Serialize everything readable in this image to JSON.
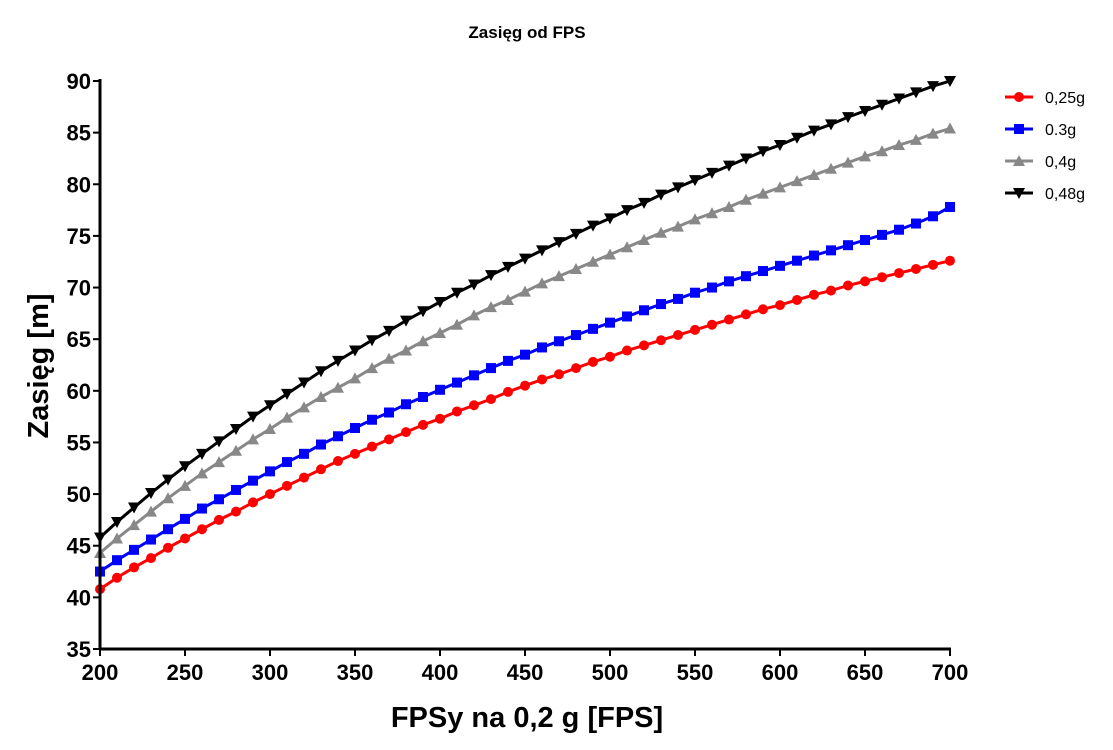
{
  "chart_data": {
    "type": "line",
    "title": "Zasięg od FPS",
    "xlabel": "FPSy na 0,2 g [FPS]",
    "ylabel": "Zasięg [m]",
    "xlim": [
      200,
      700
    ],
    "ylim": [
      35,
      90
    ],
    "xticks": [
      200,
      250,
      300,
      350,
      400,
      450,
      500,
      550,
      600,
      650,
      700
    ],
    "yticks": [
      35,
      40,
      45,
      50,
      55,
      60,
      65,
      70,
      75,
      80,
      85,
      90
    ],
    "grid": false,
    "legend_position": "top-right",
    "x_start": 200,
    "x_step": 10,
    "series": [
      {
        "name": "0,25g",
        "color": "#ff0000",
        "marker": "circle",
        "values": [
          40.8,
          41.9,
          42.9,
          43.8,
          44.8,
          45.7,
          46.6,
          47.5,
          48.3,
          49.2,
          50.0,
          50.8,
          51.6,
          52.4,
          53.2,
          53.9,
          54.6,
          55.3,
          56.0,
          56.7,
          57.3,
          58.0,
          58.6,
          59.2,
          59.9,
          60.5,
          61.1,
          61.6,
          62.2,
          62.8,
          63.3,
          63.9,
          64.4,
          64.9,
          65.4,
          65.9,
          66.4,
          66.9,
          67.4,
          67.9,
          68.3,
          68.8,
          69.3,
          69.7,
          70.2,
          70.6,
          71.0,
          71.4,
          71.8,
          72.2,
          72.6
        ]
      },
      {
        "name": "0.3g",
        "color": "#0000ff",
        "marker": "square",
        "values": [
          42.5,
          43.6,
          44.6,
          45.6,
          46.6,
          47.6,
          48.6,
          49.5,
          50.4,
          51.3,
          52.2,
          53.1,
          53.9,
          54.8,
          55.6,
          56.4,
          57.2,
          57.9,
          58.7,
          59.4,
          60.1,
          60.8,
          61.5,
          62.2,
          62.9,
          63.5,
          64.2,
          64.8,
          65.4,
          66.0,
          66.6,
          67.2,
          67.8,
          68.4,
          68.9,
          69.5,
          70.0,
          70.6,
          71.1,
          71.6,
          72.1,
          72.6,
          73.1,
          73.6,
          74.1,
          74.6,
          75.1,
          75.6,
          76.2,
          76.9,
          77.8
        ]
      },
      {
        "name": "0,4g",
        "color": "#888888",
        "marker": "triangle-up",
        "values": [
          44.3,
          45.7,
          47.0,
          48.3,
          49.6,
          50.8,
          52.0,
          53.1,
          54.2,
          55.3,
          56.3,
          57.4,
          58.4,
          59.4,
          60.3,
          61.2,
          62.2,
          63.1,
          63.9,
          64.8,
          65.6,
          66.4,
          67.3,
          68.1,
          68.8,
          69.6,
          70.4,
          71.1,
          71.8,
          72.5,
          73.2,
          73.9,
          74.6,
          75.3,
          75.9,
          76.6,
          77.2,
          77.8,
          78.5,
          79.1,
          79.7,
          80.3,
          80.9,
          81.5,
          82.1,
          82.7,
          83.2,
          83.8,
          84.3,
          84.9,
          85.4
        ]
      },
      {
        "name": "0,48g",
        "color": "#000000",
        "marker": "triangle-down",
        "values": [
          45.8,
          47.3,
          48.7,
          50.1,
          51.4,
          52.7,
          53.9,
          55.1,
          56.3,
          57.5,
          58.6,
          59.7,
          60.8,
          61.9,
          62.9,
          63.9,
          64.9,
          65.8,
          66.8,
          67.7,
          68.6,
          69.5,
          70.3,
          71.2,
          72.0,
          72.8,
          73.6,
          74.4,
          75.2,
          76.0,
          76.7,
          77.5,
          78.2,
          79.0,
          79.7,
          80.4,
          81.1,
          81.8,
          82.5,
          83.2,
          83.8,
          84.5,
          85.2,
          85.8,
          86.5,
          87.1,
          87.7,
          88.3,
          88.9,
          89.5,
          90.0
        ]
      }
    ]
  }
}
